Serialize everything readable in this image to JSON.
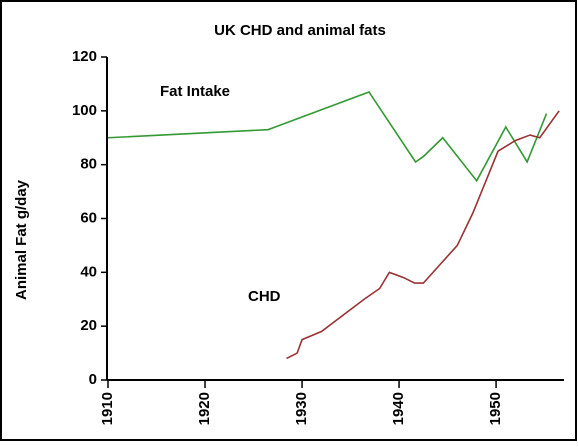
{
  "chart_data": {
    "type": "line",
    "title": "UK CHD and animal fats",
    "y_label": "Animal Fat g/day",
    "annotations": [
      "Fat Intake",
      "CHD"
    ],
    "xlim": [
      1910,
      1957
    ],
    "xticks": [
      1910,
      1920,
      1930,
      1940,
      1950
    ],
    "ylim": [
      0,
      120
    ],
    "yticks": [
      0,
      20,
      40,
      60,
      80,
      100,
      120
    ],
    "grid": false,
    "series": [
      {
        "name": "Fat Intake",
        "color": "#339933",
        "x": [
          1910,
          1926.5,
          1936.9,
          1941.7,
          1942.5,
          1944.5,
          1948,
          1951,
          1953.2,
          1955.2
        ],
        "values": [
          90,
          93,
          107,
          81,
          83,
          90,
          74,
          94,
          81,
          99
        ]
      },
      {
        "name": "CHD",
        "color": "#993333",
        "x": [
          1928.4,
          1929.5,
          1930,
          1932,
          1936.4,
          1938,
          1939,
          1940.5,
          1941.6,
          1942.5,
          1946,
          1947.6,
          1950.2,
          1952,
          1953.5,
          1954.5,
          1956.5
        ],
        "values": [
          8,
          10,
          15,
          18,
          30,
          34,
          40,
          38,
          36,
          36,
          50,
          62,
          85,
          89,
          91,
          90,
          100
        ]
      }
    ]
  }
}
